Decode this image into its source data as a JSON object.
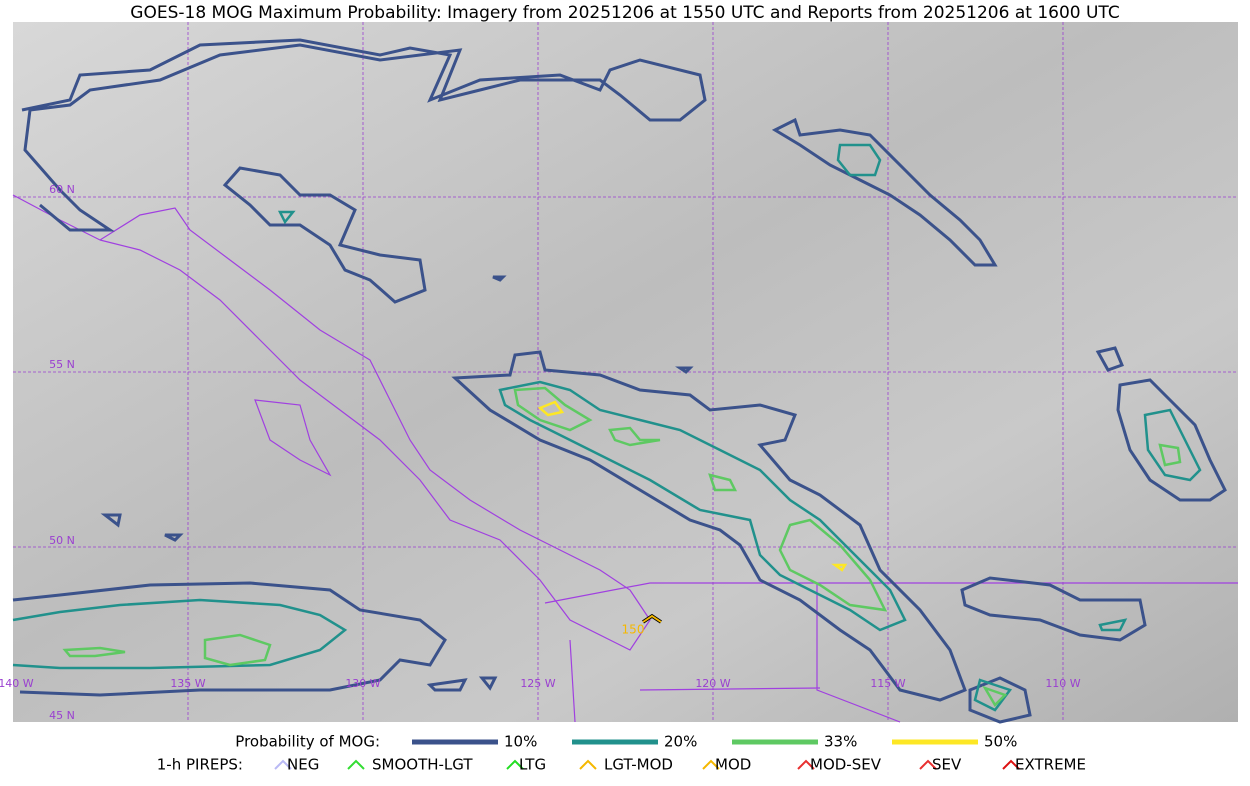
{
  "title": "GOES-18 MOG Maximum Probability: Imagery from 20251206 at 1550 UTC and Reports from 20251206 at 1600 UTC",
  "map": {
    "lat_labels": [
      "60 N",
      "55 N",
      "50 N",
      "45 N"
    ],
    "lon_labels": [
      "140 W",
      "135 W",
      "130 W",
      "125 W",
      "120 W",
      "115 W",
      "110 W"
    ],
    "report_label": "150"
  },
  "legend": {
    "probability_label": "Probability of MOG:",
    "probability_items": [
      {
        "name": "10%",
        "color": "#3b528b"
      },
      {
        "name": "20%",
        "color": "#21918c"
      },
      {
        "name": "33%",
        "color": "#5ec962"
      },
      {
        "name": "50%",
        "color": "#fde725"
      }
    ],
    "pirep_label": "1-h PIREPS:",
    "pirep_items": [
      {
        "name": "NEG",
        "color": "#b9b9f5"
      },
      {
        "name": "SMOOTH-LGT",
        "color": "#33dd33"
      },
      {
        "name": "LTG",
        "color": "#22dd22"
      },
      {
        "name": "LGT-MOD",
        "color": "#f5b800"
      },
      {
        "name": "MOD",
        "color": "#f5b800"
      },
      {
        "name": "MOD-SEV",
        "color": "#e83030"
      },
      {
        "name": "SEV",
        "color": "#e83030"
      },
      {
        "name": "EXTREME",
        "color": "#dd1111"
      }
    ]
  }
}
